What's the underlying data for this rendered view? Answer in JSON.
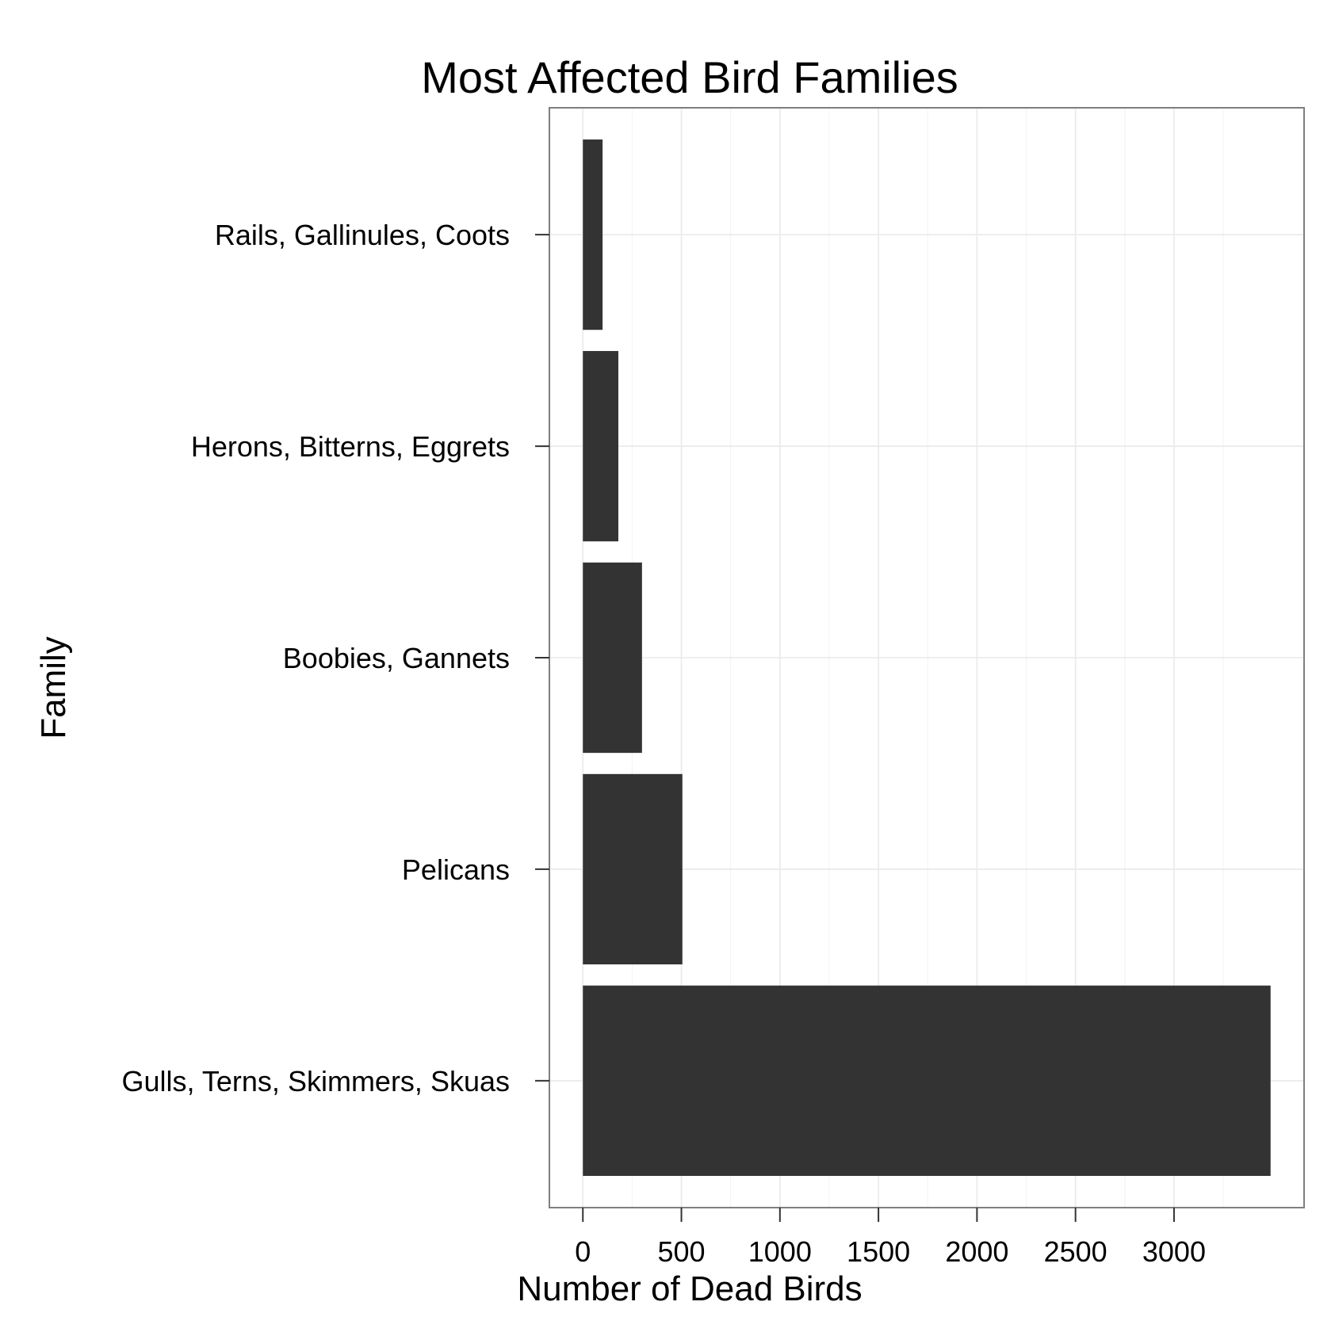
{
  "chart_data": {
    "type": "bar",
    "orientation": "horizontal",
    "title": "Most Affected Bird Families",
    "xlabel": "Number of Dead Birds",
    "ylabel": "Family",
    "categories": [
      "Gulls, Terns, Skimmers, Skuas",
      "Pelicans",
      "Boobies, Gannets",
      "Herons, Bitterns, Eggrets",
      "Rails, Gallinules, Coots"
    ],
    "values": [
      3490,
      505,
      300,
      180,
      100
    ],
    "xlim": [
      -170,
      3660
    ],
    "xticks": [
      0,
      500,
      1000,
      1500,
      2000,
      2500,
      3000
    ],
    "xtick_labels": [
      "0",
      "500",
      "1000",
      "1500",
      "2000",
      "2500",
      "3000"
    ],
    "grid": true,
    "legend": "none",
    "colors": {
      "bar": "#333333",
      "grid": "#ebebeb",
      "panel_border": "#7f7f7f",
      "tick": "#333333"
    }
  }
}
